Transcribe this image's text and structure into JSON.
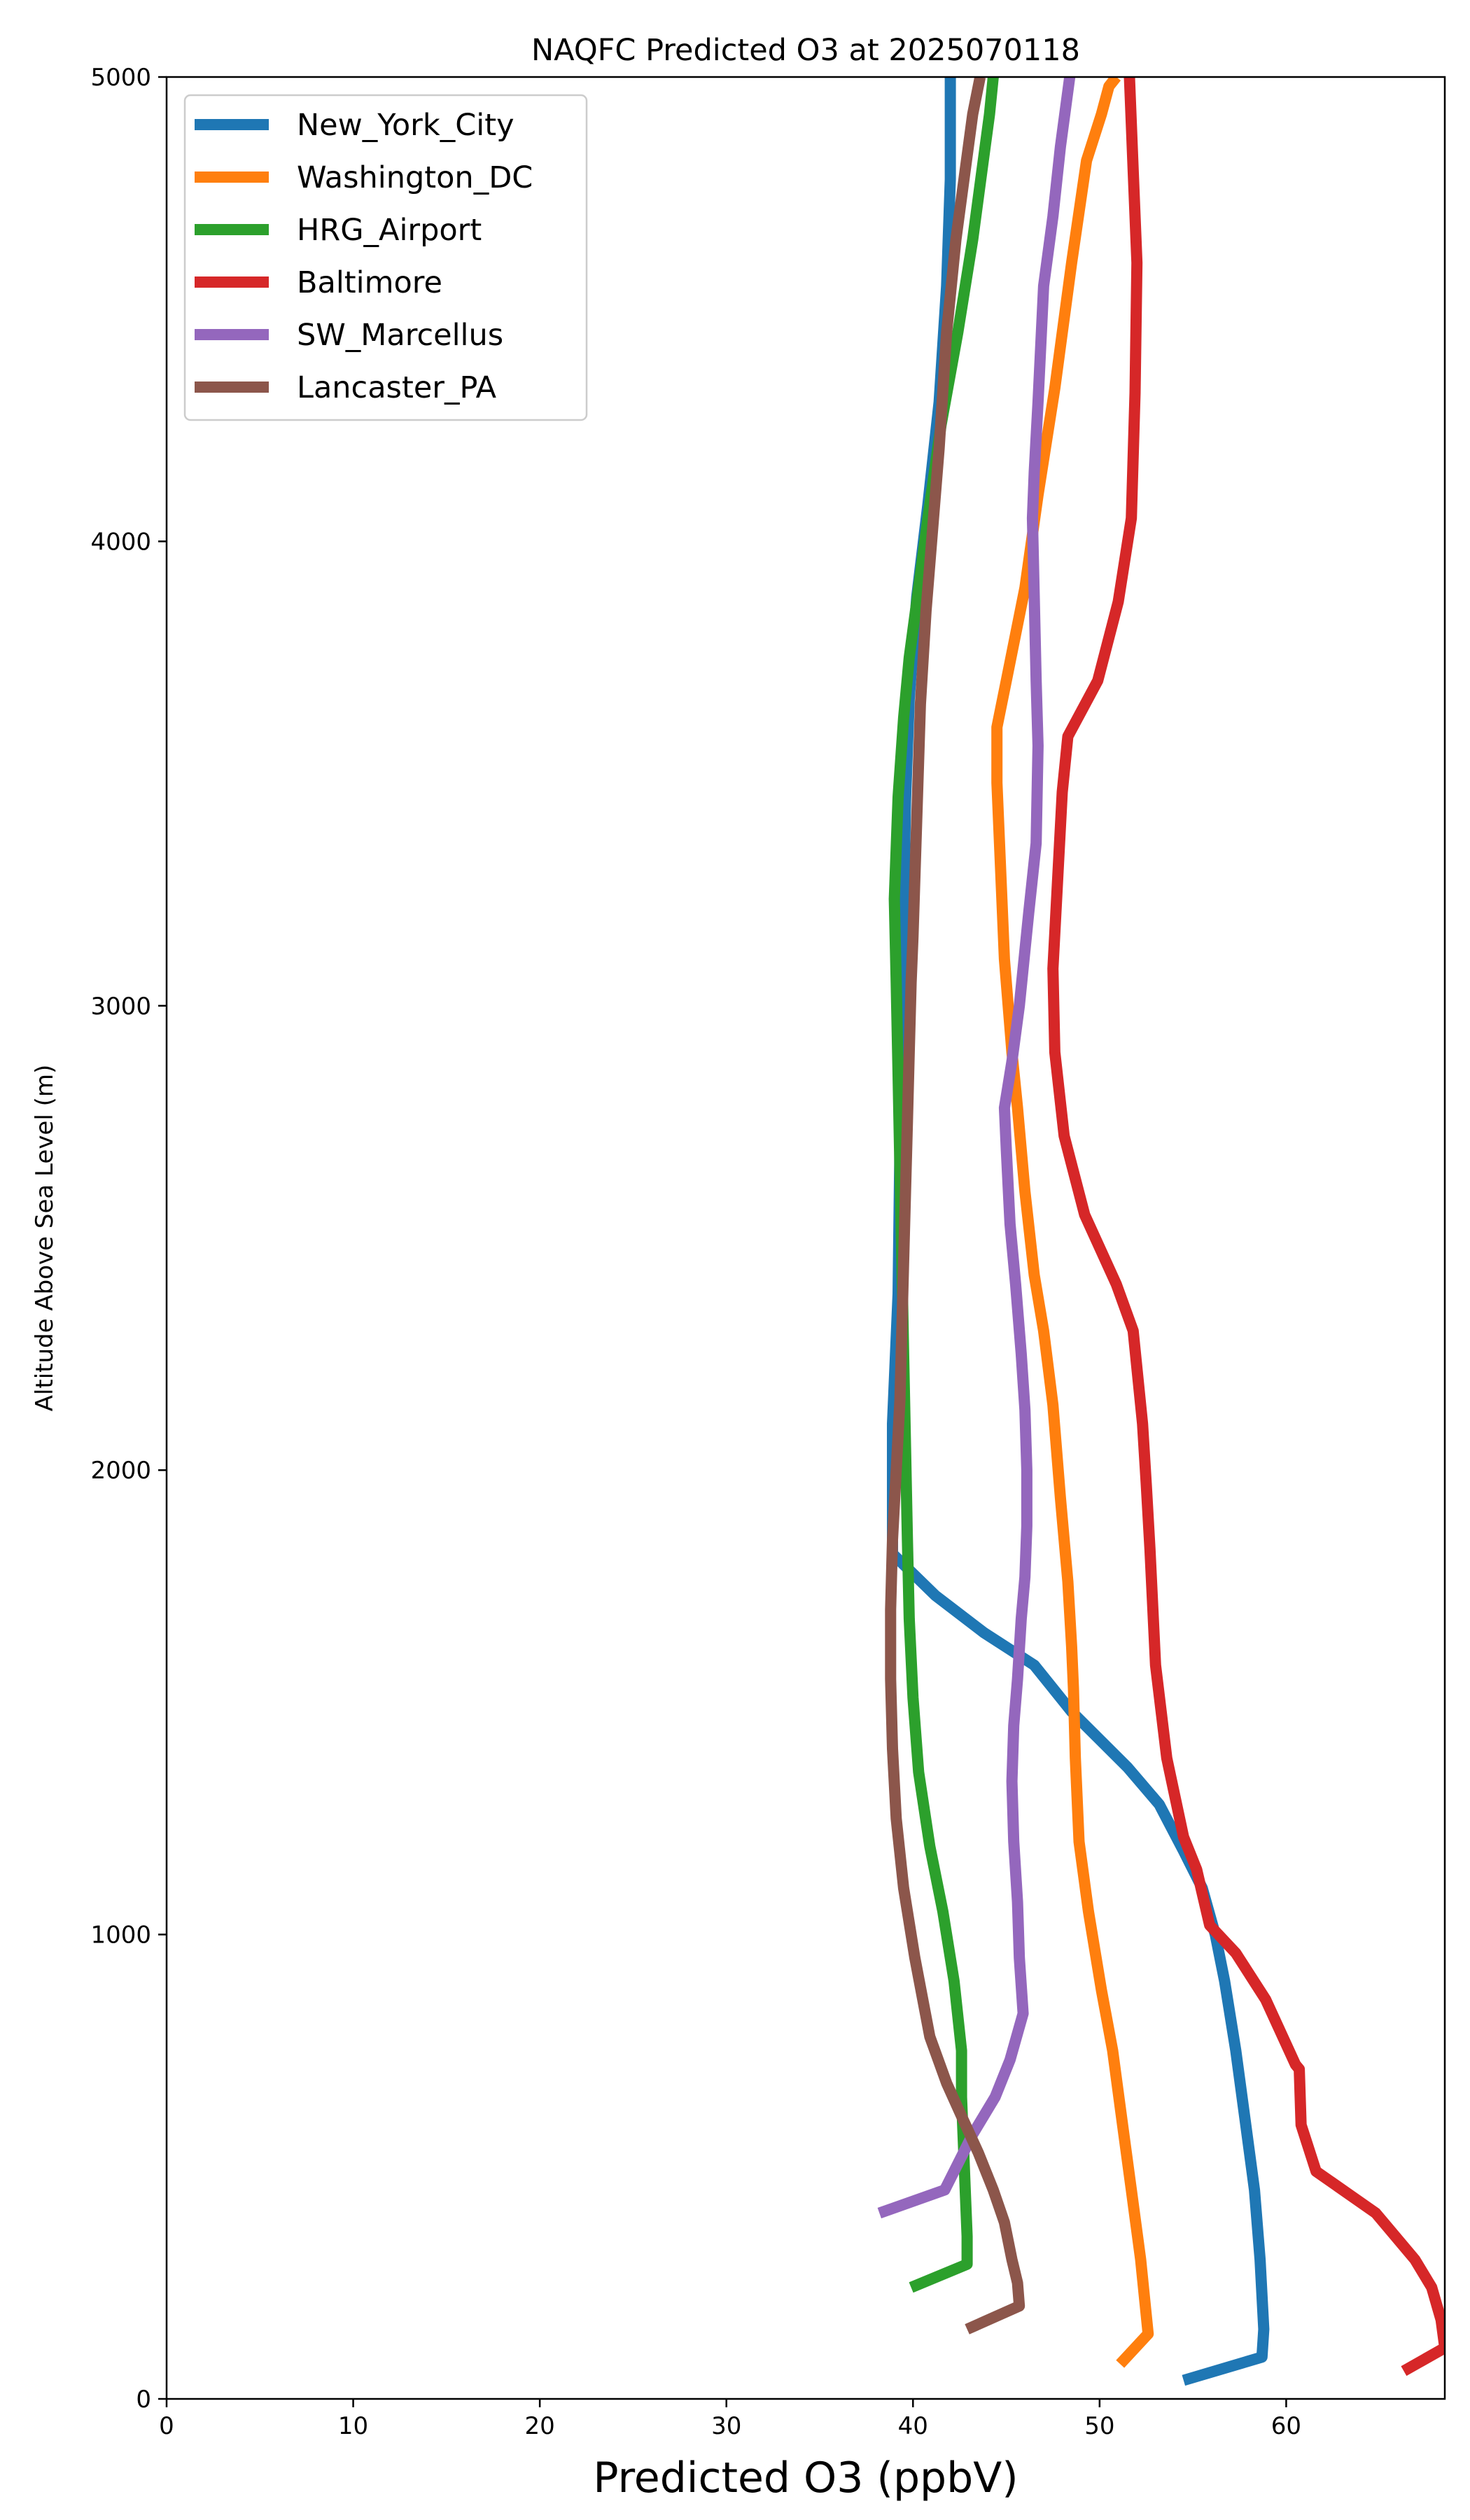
{
  "chart_data": {
    "type": "line",
    "title": "NAQFC Predicted O3 at 2025070118",
    "xlabel": "Predicted O3 (ppbV)",
    "ylabel": "Altitude Above Sea Level (m)",
    "xlim": [
      0,
      68.5
    ],
    "ylim": [
      0,
      5000
    ],
    "xticks": [
      0,
      10,
      20,
      30,
      40,
      50,
      60
    ],
    "yticks": [
      0,
      1000,
      2000,
      3000,
      4000,
      5000
    ],
    "grid": false,
    "legend_position": "top-left",
    "series": [
      {
        "name": "New_York_City",
        "color": "#1f77b4",
        "x": [
          54.5,
          58.7,
          58.8,
          58.6,
          58.3,
          57.8,
          57.3,
          56.7,
          56.2,
          55.5,
          54.5,
          53.2,
          51.5,
          48.5,
          46.5,
          43.8,
          41.2,
          38.9,
          38.9,
          39.2,
          39.3,
          39.4,
          39.5,
          39.6,
          39.8,
          40.2,
          40.8,
          41.4,
          41.8,
          42.0,
          42.0,
          42.0
        ],
        "y": [
          40,
          90,
          150,
          300,
          450,
          600,
          750,
          900,
          1000,
          1100,
          1180,
          1280,
          1360,
          1480,
          1580,
          1650,
          1730,
          1820,
          2100,
          2380,
          2700,
          2960,
          3200,
          3440,
          3660,
          3880,
          4080,
          4300,
          4550,
          4780,
          4900,
          5000
        ]
      },
      {
        "name": "Washington_DC",
        "color": "#ff7f0e",
        "x": [
          51.1,
          52.6,
          52.2,
          51.7,
          51.2,
          50.7,
          50.1,
          49.4,
          48.9,
          48.7,
          48.6,
          48.5,
          48.3,
          47.9,
          47.5,
          47.0,
          46.5,
          46.0,
          45.6,
          45.3,
          44.9,
          44.5,
          44.5,
          45.0,
          45.5,
          46.0,
          46.7,
          47.6,
          48.5,
          49.3,
          50.1,
          50.5,
          50.9
        ],
        "y": [
          75,
          140,
          300,
          450,
          600,
          750,
          880,
          1050,
          1200,
          1380,
          1530,
          1620,
          1760,
          1940,
          2140,
          2300,
          2420,
          2600,
          2780,
          2900,
          3100,
          3480,
          3600,
          3700,
          3800,
          3900,
          4100,
          4330,
          4600,
          4820,
          4920,
          4980,
          5000
        ]
      },
      {
        "name": "HRG_Airport",
        "color": "#2ca02c",
        "x": [
          39.9,
          42.9,
          42.9,
          42.8,
          42.7,
          42.6,
          42.6,
          42.2,
          41.6,
          40.9,
          40.3,
          40.0,
          39.8,
          39.7,
          39.6,
          39.5,
          39.4,
          39.3,
          39.2,
          39.1,
          39.0,
          39.2,
          39.5,
          39.8,
          40.3,
          40.8,
          41.5,
          42.4,
          43.2,
          43.7,
          44.1,
          44.3
        ],
        "y": [
          240,
          290,
          350,
          450,
          550,
          650,
          750,
          900,
          1050,
          1190,
          1350,
          1510,
          1680,
          1850,
          2050,
          2250,
          2450,
          2650,
          2850,
          3050,
          3230,
          3450,
          3620,
          3750,
          3900,
          4050,
          4250,
          4450,
          4650,
          4800,
          4920,
          5000
        ]
      },
      {
        "name": "Baltimore",
        "color": "#d62728",
        "x": [
          66.3,
          68.5,
          68.3,
          67.8,
          66.9,
          64.8,
          61.6,
          60.8,
          60.7,
          60.5,
          58.9,
          57.3,
          55.9,
          55.2,
          54.5,
          53.6,
          53.0,
          52.7,
          52.5,
          52.3,
          51.8,
          50.9,
          49.2,
          48.1,
          47.6,
          47.5,
          48.0,
          48.3,
          49.9,
          51.0,
          51.7,
          51.9,
          52.0,
          51.8,
          51.6
        ],
        "y": [
          60,
          110,
          170,
          240,
          300,
          400,
          490,
          590,
          710,
          720,
          860,
          960,
          1020,
          1140,
          1210,
          1380,
          1580,
          1830,
          1970,
          2100,
          2300,
          2400,
          2550,
          2720,
          2900,
          3080,
          3460,
          3580,
          3700,
          3870,
          4050,
          4320,
          4600,
          4800,
          5000
        ]
      },
      {
        "name": "SW_Marcellus",
        "color": "#9467bd",
        "x": [
          38.2,
          41.7,
          43.2,
          44.4,
          45.2,
          45.9,
          45.7,
          45.6,
          45.4,
          45.3,
          45.4,
          45.6,
          45.8,
          46.0,
          46.1,
          46.1,
          46.0,
          45.8,
          45.5,
          45.2,
          45.0,
          44.9,
          45.3,
          45.7,
          46.2,
          46.6,
          46.7,
          46.6,
          46.5,
          46.4,
          46.5,
          46.7,
          47.0,
          47.5,
          47.9,
          48.4
        ],
        "y": [
          400,
          450,
          570,
          650,
          730,
          830,
          950,
          1070,
          1200,
          1330,
          1450,
          1550,
          1680,
          1770,
          1880,
          2000,
          2130,
          2250,
          2400,
          2530,
          2690,
          2780,
          2880,
          3000,
          3200,
          3350,
          3560,
          3700,
          3880,
          4050,
          4150,
          4300,
          4550,
          4700,
          4850,
          5000
        ]
      },
      {
        "name": "Lancaster_PA",
        "color": "#8c564b",
        "x": [
          42.9,
          45.7,
          45.6,
          45.3,
          44.9,
          44.3,
          43.5,
          42.7,
          41.8,
          40.9,
          40.1,
          39.5,
          39.1,
          38.9,
          38.8,
          38.8,
          38.9,
          39.1,
          39.3,
          39.4,
          39.5,
          39.6,
          39.7,
          39.8,
          39.9,
          40.0,
          40.2,
          40.4,
          40.7,
          41.0,
          41.4,
          41.8,
          42.3,
          42.8,
          43.2,
          43.6
        ],
        "y": [
          150,
          200,
          250,
          300,
          380,
          450,
          530,
          600,
          680,
          780,
          950,
          1100,
          1250,
          1400,
          1550,
          1700,
          1850,
          2000,
          2150,
          2300,
          2450,
          2600,
          2750,
          2900,
          3050,
          3150,
          3400,
          3650,
          3850,
          4000,
          4200,
          4450,
          4650,
          4800,
          4920,
          5000
        ]
      }
    ]
  }
}
